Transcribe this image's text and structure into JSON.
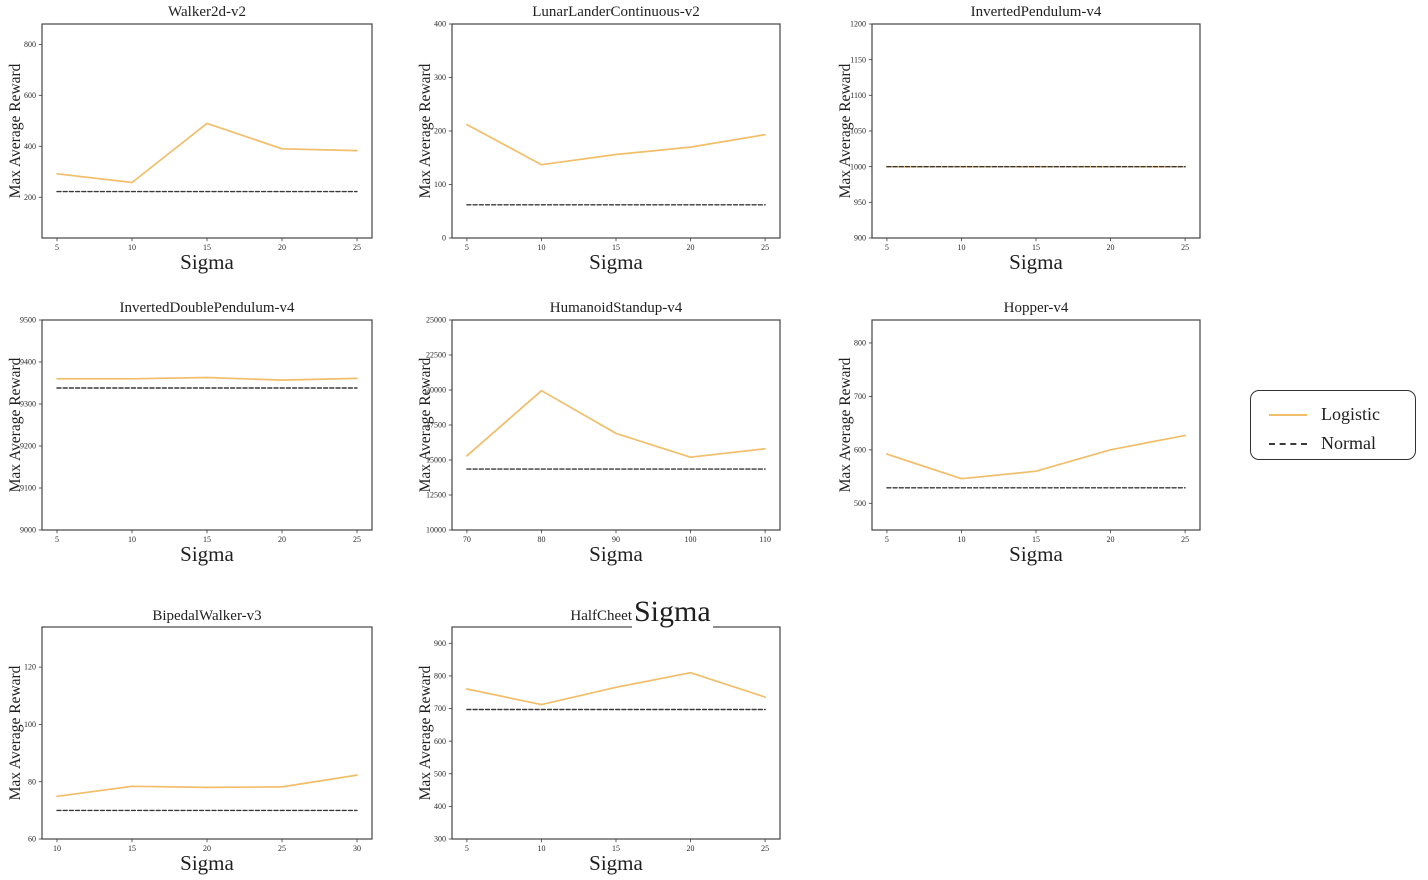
{
  "figure": {
    "background": "#ffffff",
    "axis_color": "#3c3c3c",
    "text_color": "#2b2b2b"
  },
  "legend": {
    "items": [
      {
        "label": "Logistic",
        "color": "#F2BE6A",
        "dash": "solid"
      },
      {
        "label": "Normal",
        "color": "#3A3A3A",
        "dash": "dashed"
      }
    ]
  },
  "chart_data": [
    {
      "type": "line",
      "title": "Walker2d-v2",
      "xlabel": "Sigma",
      "ylabel": "Max Average Reward",
      "x": [
        5,
        10,
        15,
        20,
        25
      ],
      "xticks": [
        5,
        10,
        15,
        20,
        25
      ],
      "yticks": [
        200,
        400,
        600,
        800
      ],
      "xlim": [
        4,
        26
      ],
      "ylim": [
        40,
        880
      ],
      "grid": false,
      "series": [
        {
          "name": "Logistic",
          "color": "#F2BE6A",
          "dash": "solid",
          "values": [
            292,
            258,
            490,
            390,
            383
          ]
        },
        {
          "name": "Normal",
          "color": "#3A3A3A",
          "dash": "dashed",
          "values": [
            222,
            222,
            222,
            222,
            222
          ]
        }
      ]
    },
    {
      "type": "line",
      "title": "LunarLanderContinuous-v2",
      "xlabel": "Sigma",
      "ylabel": "Max Average Reward",
      "x": [
        5,
        10,
        15,
        20,
        25
      ],
      "xticks": [
        5,
        10,
        15,
        20,
        25
      ],
      "yticks": [
        0,
        100,
        200,
        300,
        400
      ],
      "xlim": [
        4,
        26
      ],
      "ylim": [
        0,
        400
      ],
      "grid": false,
      "series": [
        {
          "name": "Logistic",
          "color": "#F2BE6A",
          "dash": "solid",
          "values": [
            212,
            137,
            156,
            170,
            193
          ]
        },
        {
          "name": "Normal",
          "color": "#3A3A3A",
          "dash": "dashed",
          "values": [
            62,
            62,
            62,
            62,
            62
          ]
        }
      ]
    },
    {
      "type": "line",
      "title": "InvertedPendulum-v4",
      "xlabel": "Sigma",
      "ylabel": "Max Average Reward",
      "x": [
        5,
        10,
        15,
        20,
        25
      ],
      "xticks": [
        5,
        10,
        15,
        20,
        25
      ],
      "yticks": [
        900,
        950,
        1000,
        1050,
        1100,
        1150,
        1200
      ],
      "xlim": [
        4,
        26
      ],
      "ylim": [
        900,
        1200
      ],
      "grid": false,
      "series": [
        {
          "name": "Logistic",
          "color": "#F2BE6A",
          "dash": "solid",
          "values": [
            1000,
            1000,
            1000,
            1000,
            1000
          ]
        },
        {
          "name": "Normal",
          "color": "#3A3A3A",
          "dash": "dashed",
          "values": [
            1000,
            1000,
            1000,
            1000,
            1000
          ]
        }
      ]
    },
    {
      "type": "line",
      "title": "InvertedDoublePendulum-v4",
      "xlabel": "Sigma",
      "ylabel": "Max Average Reward",
      "x": [
        5,
        10,
        15,
        20,
        25
      ],
      "xticks": [
        5,
        10,
        15,
        20,
        25
      ],
      "yticks": [
        9000,
        9100,
        9200,
        9300,
        9400,
        9500
      ],
      "xlim": [
        4,
        26
      ],
      "ylim": [
        9000,
        9500
      ],
      "grid": false,
      "series": [
        {
          "name": "Logistic",
          "color": "#F2BE6A",
          "dash": "solid",
          "values": [
            9360,
            9360,
            9363,
            9357,
            9361
          ]
        },
        {
          "name": "Normal",
          "color": "#3A3A3A",
          "dash": "dashed",
          "values": [
            9338,
            9338,
            9338,
            9338,
            9338
          ]
        }
      ]
    },
    {
      "type": "line",
      "title": "HumanoidStandup-v4",
      "xlabel": "Sigma",
      "ylabel": "Max Average Reward",
      "x": [
        70,
        80,
        90,
        100,
        110
      ],
      "xticks": [
        70,
        80,
        90,
        100,
        110
      ],
      "yticks": [
        10000,
        12500,
        15000,
        17500,
        20000,
        22500,
        25000
      ],
      "xlim": [
        68,
        112
      ],
      "ylim": [
        10000,
        25000
      ],
      "grid": false,
      "series": [
        {
          "name": "Logistic",
          "color": "#F2BE6A",
          "dash": "solid",
          "values": [
            15300,
            19950,
            16900,
            15200,
            15800
          ]
        },
        {
          "name": "Normal",
          "color": "#3A3A3A",
          "dash": "dashed",
          "values": [
            14350,
            14350,
            14350,
            14350,
            14350
          ]
        }
      ]
    },
    {
      "type": "line",
      "title": "Hopper-v4",
      "xlabel": "Sigma",
      "ylabel": "Max Average Reward",
      "x": [
        5,
        10,
        15,
        20,
        25
      ],
      "xticks": [
        5,
        10,
        15,
        20,
        25
      ],
      "yticks": [
        500,
        600,
        700,
        800
      ],
      "xlim": [
        4,
        26
      ],
      "ylim": [
        450,
        843
      ],
      "grid": false,
      "series": [
        {
          "name": "Logistic",
          "color": "#F2BE6A",
          "dash": "solid",
          "values": [
            592,
            546,
            560,
            600,
            627
          ]
        },
        {
          "name": "Normal",
          "color": "#3A3A3A",
          "dash": "dashed",
          "values": [
            529,
            529,
            529,
            529,
            529
          ]
        }
      ]
    },
    {
      "type": "line",
      "title": "BipedalWalker-v3",
      "xlabel": "Sigma",
      "ylabel": "Max Average Reward",
      "x": [
        10,
        15,
        20,
        25,
        30
      ],
      "xticks": [
        10,
        15,
        20,
        25,
        30
      ],
      "yticks": [
        60,
        80,
        100,
        120
      ],
      "xlim": [
        9,
        31
      ],
      "ylim": [
        60,
        134
      ],
      "grid": false,
      "series": [
        {
          "name": "Logistic",
          "color": "#F2BE6A",
          "dash": "solid",
          "values": [
            74.9,
            78.4,
            78,
            78.2,
            82.3
          ]
        },
        {
          "name": "Normal",
          "color": "#3A3A3A",
          "dash": "dashed",
          "values": [
            70,
            70,
            70,
            70,
            70
          ]
        }
      ]
    },
    {
      "type": "line",
      "title": "HalfCheet",
      "title_overlay": "Sigma",
      "xlabel": "Sigma",
      "ylabel": "Max Average Reward",
      "x": [
        5,
        10,
        15,
        20,
        25
      ],
      "xticks": [
        5,
        10,
        15,
        20,
        25
      ],
      "yticks": [
        300,
        400,
        500,
        600,
        700,
        800,
        900
      ],
      "xlim": [
        4,
        26
      ],
      "ylim": [
        300,
        950
      ],
      "grid": false,
      "series": [
        {
          "name": "Logistic",
          "color": "#F2BE6A",
          "dash": "solid",
          "values": [
            760,
            712,
            765,
            810,
            735
          ]
        },
        {
          "name": "Normal",
          "color": "#3A3A3A",
          "dash": "dashed",
          "values": [
            697,
            697,
            697,
            697,
            697
          ]
        }
      ]
    }
  ]
}
